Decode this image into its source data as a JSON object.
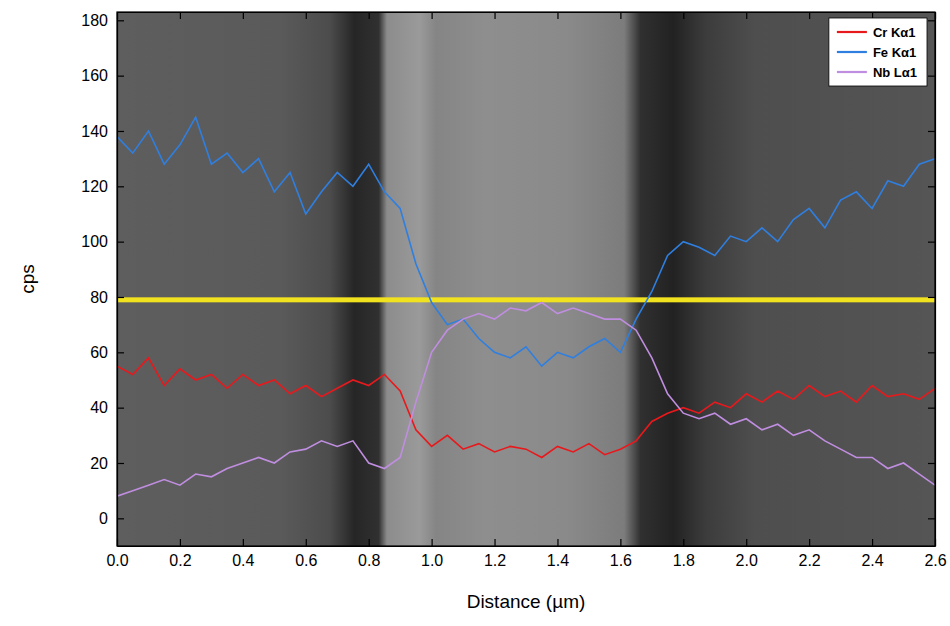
{
  "chart_data": {
    "type": "line",
    "x_label": "Distance (µm)",
    "y_label": "cps",
    "x": [
      0,
      0.05,
      0.1,
      0.15,
      0.2,
      0.25,
      0.3,
      0.35,
      0.4,
      0.45,
      0.5,
      0.55,
      0.6,
      0.65,
      0.7,
      0.75,
      0.8,
      0.85,
      0.9,
      0.95,
      1.0,
      1.05,
      1.1,
      1.15,
      1.2,
      1.25,
      1.3,
      1.35,
      1.4,
      1.45,
      1.5,
      1.55,
      1.6,
      1.65,
      1.7,
      1.75,
      1.8,
      1.85,
      1.9,
      1.95,
      2.0,
      2.05,
      2.1,
      2.15,
      2.2,
      2.25,
      2.3,
      2.35,
      2.4,
      2.45,
      2.5,
      2.55,
      2.6
    ],
    "series": [
      {
        "name": "Cr Kα1",
        "color": "#e8191d",
        "values": [
          55,
          52,
          58,
          48,
          54,
          50,
          52,
          47,
          52,
          48,
          50,
          45,
          48,
          44,
          47,
          50,
          48,
          52,
          46,
          32,
          26,
          30,
          25,
          27,
          24,
          26,
          25,
          22,
          26,
          24,
          27,
          23,
          25,
          28,
          35,
          38,
          40,
          38,
          42,
          40,
          45,
          42,
          46,
          43,
          48,
          44,
          46,
          42,
          48,
          44,
          45,
          43,
          47
        ]
      },
      {
        "name": "Fe Kα1",
        "color": "#2f7fe0",
        "values": [
          138,
          132,
          140,
          128,
          135,
          145,
          128,
          132,
          125,
          130,
          118,
          125,
          110,
          118,
          125,
          120,
          128,
          118,
          112,
          92,
          78,
          70,
          72,
          65,
          60,
          58,
          62,
          55,
          60,
          58,
          62,
          65,
          60,
          72,
          82,
          95,
          100,
          98,
          95,
          102,
          100,
          105,
          100,
          108,
          112,
          105,
          115,
          118,
          112,
          122,
          120,
          128,
          130
        ]
      },
      {
        "name": "Nb Lα1",
        "color": "#c08ee0",
        "values": [
          8,
          10,
          12,
          14,
          12,
          16,
          15,
          18,
          20,
          22,
          20,
          24,
          25,
          28,
          26,
          28,
          20,
          18,
          22,
          42,
          60,
          68,
          72,
          74,
          72,
          76,
          75,
          78,
          74,
          76,
          74,
          72,
          72,
          68,
          58,
          45,
          38,
          36,
          38,
          34,
          36,
          32,
          34,
          30,
          32,
          28,
          25,
          22,
          22,
          18,
          20,
          16,
          12
        ]
      }
    ],
    "xlim": [
      0,
      2.6
    ],
    "xticks": [
      {
        "value": 0,
        "label": "0.0"
      },
      0.2,
      0.4,
      0.6,
      0.8,
      {
        "value": 1,
        "label": "1.0"
      },
      1.2,
      1.4,
      1.6,
      1.8,
      {
        "value": 2,
        "label": "2.0"
      },
      2.2,
      2.4,
      2.6
    ],
    "ylim": [
      -10,
      183
    ],
    "yticks": [
      0,
      20,
      40,
      60,
      80,
      100,
      120,
      140,
      160,
      180
    ],
    "legend": "top-right",
    "grid": false
  }
}
